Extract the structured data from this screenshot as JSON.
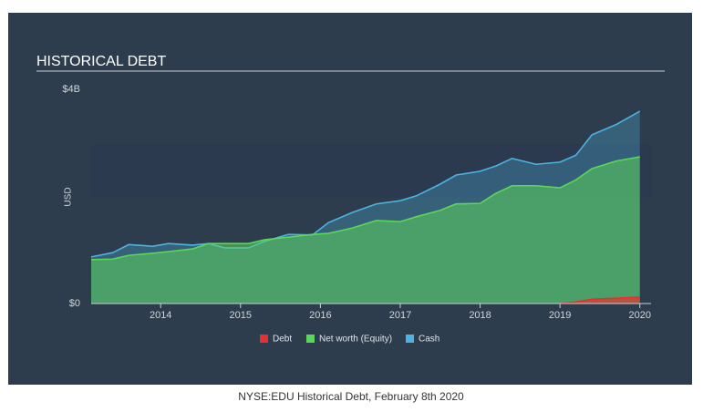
{
  "chart_data": {
    "type": "area",
    "title": "HISTORICAL DEBT",
    "ylabel": "USD",
    "caption": "NYSE:EDU Historical Debt, February 8th 2020",
    "x": [
      2013.13,
      2013.4,
      2013.6,
      2013.9,
      2014.1,
      2014.4,
      2014.6,
      2014.8,
      2015.1,
      2015.3,
      2015.6,
      2015.9,
      2016.1,
      2016.4,
      2016.7,
      2017.0,
      2017.2,
      2017.5,
      2017.7,
      2018.0,
      2018.2,
      2018.4,
      2018.7,
      2019.0,
      2019.2,
      2019.4,
      2019.7,
      2020.0
    ],
    "series": [
      {
        "name": "Debt",
        "color": "#e5302f",
        "values": [
          null,
          null,
          null,
          null,
          null,
          null,
          null,
          null,
          null,
          null,
          null,
          null,
          null,
          null,
          null,
          null,
          null,
          null,
          null,
          null,
          null,
          null,
          null,
          0,
          0.03,
          0.08,
          0.1,
          0.12
        ]
      },
      {
        "name": "Net worth (Equity)",
        "color": "#5bd65b",
        "values": [
          0.82,
          0.83,
          0.9,
          0.94,
          0.97,
          1.02,
          1.12,
          1.12,
          1.12,
          1.19,
          1.24,
          1.29,
          1.31,
          1.41,
          1.55,
          1.53,
          1.62,
          1.74,
          1.86,
          1.87,
          2.06,
          2.2,
          2.2,
          2.16,
          2.31,
          2.52,
          2.66,
          2.74
        ]
      },
      {
        "name": "Cash",
        "color": "#4cb3e2",
        "values": [
          0.87,
          0.95,
          1.1,
          1.07,
          1.12,
          1.09,
          1.12,
          1.04,
          1.04,
          1.16,
          1.29,
          1.28,
          1.51,
          1.7,
          1.86,
          1.92,
          2.01,
          2.23,
          2.4,
          2.47,
          2.57,
          2.71,
          2.6,
          2.64,
          2.77,
          3.15,
          3.34,
          3.59
        ]
      }
    ],
    "xlim": [
      2013.13,
      2020.14
    ],
    "xticks": [
      2014,
      2015,
      2016,
      2017,
      2018,
      2019,
      2020
    ],
    "ylim": [
      0,
      4
    ],
    "yticks": [
      {
        "value": 0,
        "label": "$0"
      },
      {
        "value": 4,
        "label": "$4B"
      }
    ]
  }
}
